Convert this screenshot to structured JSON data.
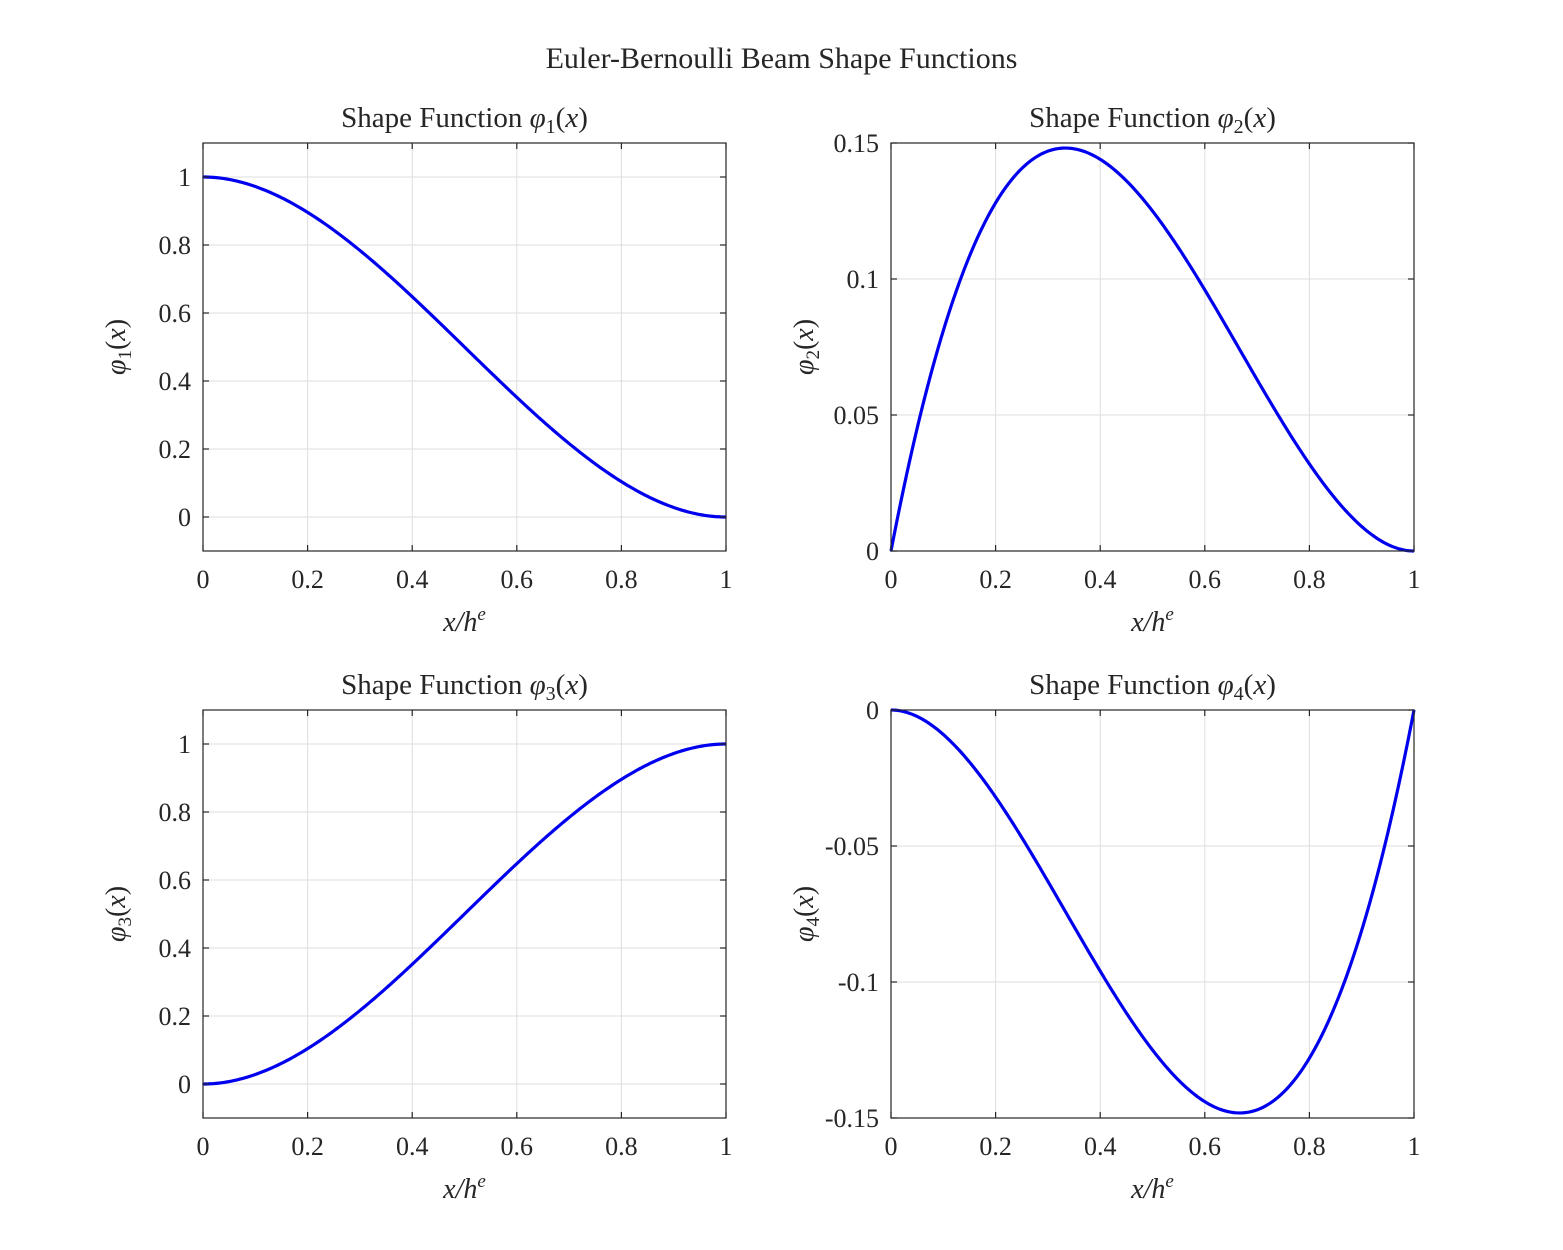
{
  "figure_title": "Euler-Bernoulli Beam Shape Functions",
  "line_color": "#0000ee",
  "chart_data": [
    {
      "type": "line",
      "title": "Shape Function φ1(x)",
      "title_prefix": "Shape Function ",
      "ylabel": "φ1(x)",
      "xlabel": "x/he",
      "func": "1 - 3x^2 + 2x^3",
      "x": [
        0,
        0.05,
        0.1,
        0.15,
        0.2,
        0.25,
        0.3,
        0.35,
        0.4,
        0.45,
        0.5,
        0.55,
        0.6,
        0.65,
        0.7,
        0.75,
        0.8,
        0.85,
        0.9,
        0.95,
        1
      ],
      "series": [
        {
          "values": [
            1,
            0.99275,
            0.972,
            0.93925,
            0.896,
            0.84375,
            0.784,
            0.71825,
            0.648,
            0.57475,
            0.5,
            0.42525,
            0.352,
            0.28175,
            0.216,
            0.15625,
            0.104,
            0.06075,
            0.028,
            0.00725,
            0
          ]
        }
      ],
      "xlim": [
        0,
        1
      ],
      "ylim": [
        -0.1,
        1.1
      ],
      "xticks": [
        "0",
        "0.2",
        "0.4",
        "0.6",
        "0.8",
        "1"
      ],
      "yticks": [
        "0",
        "0.2",
        "0.4",
        "0.6",
        "0.8",
        "1"
      ],
      "grid": true
    },
    {
      "type": "line",
      "title": "Shape Function φ2(x)",
      "title_prefix": "Shape Function ",
      "ylabel": "φ2(x)",
      "xlabel": "x/he",
      "func": "x(1-x)^2",
      "x": [
        0,
        0.05,
        0.1,
        0.15,
        0.2,
        0.25,
        0.3,
        0.35,
        0.4,
        0.45,
        0.5,
        0.55,
        0.6,
        0.65,
        0.7,
        0.75,
        0.8,
        0.85,
        0.9,
        0.95,
        1
      ],
      "series": [
        {
          "values": [
            0,
            0.045125,
            0.081,
            0.108375,
            0.128,
            0.140625,
            0.147,
            0.147875,
            0.144,
            0.136125,
            0.125,
            0.111375,
            0.096,
            0.079625,
            0.063,
            0.046875,
            0.032,
            0.019125,
            0.009,
            0.002375,
            0
          ]
        }
      ],
      "xlim": [
        0,
        1
      ],
      "ylim": [
        0,
        0.15
      ],
      "xticks": [
        "0",
        "0.2",
        "0.4",
        "0.6",
        "0.8",
        "1"
      ],
      "yticks": [
        "0",
        "0.05",
        "0.1",
        "0.15"
      ],
      "grid": true
    },
    {
      "type": "line",
      "title": "Shape Function φ3(x)",
      "title_prefix": "Shape Function ",
      "ylabel": "φ3(x)",
      "xlabel": "x/he",
      "func": "3x^2 - 2x^3",
      "x": [
        0,
        0.05,
        0.1,
        0.15,
        0.2,
        0.25,
        0.3,
        0.35,
        0.4,
        0.45,
        0.5,
        0.55,
        0.6,
        0.65,
        0.7,
        0.75,
        0.8,
        0.85,
        0.9,
        0.95,
        1
      ],
      "series": [
        {
          "values": [
            0,
            0.00725,
            0.028,
            0.06075,
            0.104,
            0.15625,
            0.216,
            0.28175,
            0.352,
            0.42525,
            0.5,
            0.57475,
            0.648,
            0.71825,
            0.784,
            0.84375,
            0.896,
            0.93925,
            0.972,
            0.99275,
            1
          ]
        }
      ],
      "xlim": [
        0,
        1
      ],
      "ylim": [
        -0.1,
        1.1
      ],
      "xticks": [
        "0",
        "0.2",
        "0.4",
        "0.6",
        "0.8",
        "1"
      ],
      "yticks": [
        "0",
        "0.2",
        "0.4",
        "0.6",
        "0.8",
        "1"
      ],
      "grid": true
    },
    {
      "type": "line",
      "title": "Shape Function φ4(x)",
      "title_prefix": "Shape Function ",
      "ylabel": "φ4(x)",
      "xlabel": "x/he",
      "func": "-x^2(1-x)",
      "x": [
        0,
        0.05,
        0.1,
        0.15,
        0.2,
        0.25,
        0.3,
        0.35,
        0.4,
        0.45,
        0.5,
        0.55,
        0.6,
        0.65,
        0.7,
        0.75,
        0.8,
        0.85,
        0.9,
        0.95,
        1
      ],
      "series": [
        {
          "values": [
            0,
            -0.002375,
            -0.009,
            -0.019125,
            -0.032,
            -0.046875,
            -0.063,
            -0.079625,
            -0.096,
            -0.111375,
            -0.125,
            -0.136125,
            -0.144,
            -0.147875,
            -0.147,
            -0.140625,
            -0.128,
            -0.108375,
            -0.081,
            -0.045125,
            0
          ]
        }
      ],
      "xlim": [
        0,
        1
      ],
      "ylim": [
        -0.15,
        0
      ],
      "xticks": [
        "0",
        "0.2",
        "0.4",
        "0.6",
        "0.8",
        "1"
      ],
      "yticks": [
        "-0.15",
        "-0.1",
        "-0.05",
        "0"
      ],
      "grid": true
    }
  ]
}
